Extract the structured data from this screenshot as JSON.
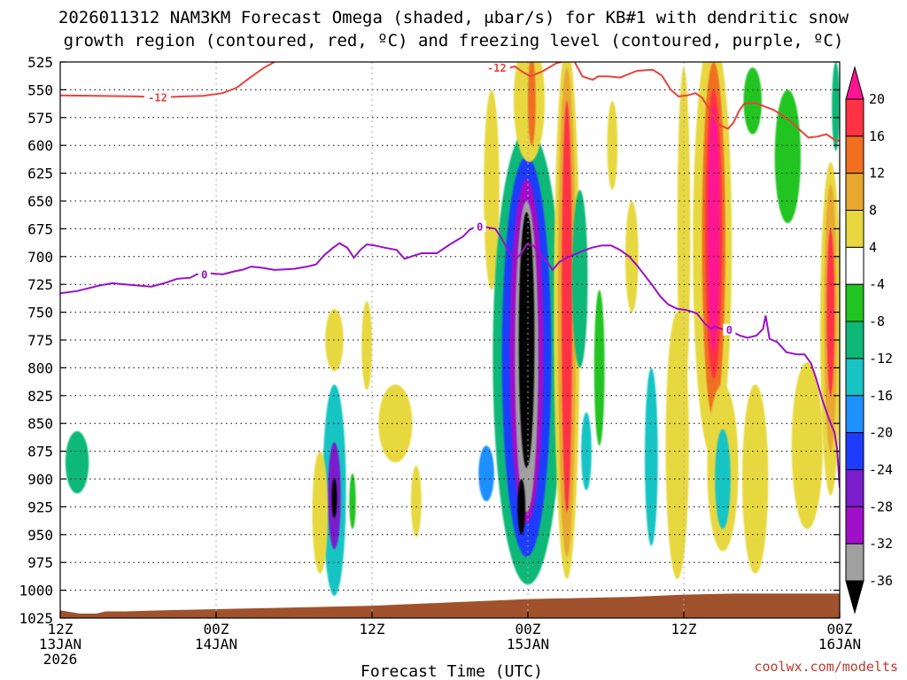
{
  "chart_data": {
    "type": "heatmap",
    "title_line1": "2026011312 NAM3KM Forecast Omega (shaded, μbar/s) for KB#1 with dendritic snow",
    "title_line2": "growth region (contoured, red, ºC) and freezing level (contoured, purple, ºC)",
    "xlabel": "Forecast Time (UTC)",
    "credit": "coolwx.com/modelts",
    "x_unit": "forecast hour",
    "x_range": [
      0,
      60
    ],
    "y_unit": "hPa",
    "y_range": [
      525,
      1025
    ],
    "y_ticks": [
      525,
      550,
      575,
      600,
      625,
      650,
      675,
      700,
      725,
      750,
      775,
      800,
      825,
      850,
      875,
      900,
      925,
      950,
      975,
      1000,
      1025
    ],
    "x_ticks": [
      {
        "hour": 0,
        "line1": "12Z",
        "line2": "13JAN",
        "line3": "2026"
      },
      {
        "hour": 12,
        "line1": "00Z",
        "line2": "14JAN",
        "line3": ""
      },
      {
        "hour": 24,
        "line1": "12Z",
        "line2": "",
        "line3": ""
      },
      {
        "hour": 36,
        "line1": "00Z",
        "line2": "15JAN",
        "line3": ""
      },
      {
        "hour": 48,
        "line1": "12Z",
        "line2": "",
        "line3": ""
      },
      {
        "hour": 60,
        "line1": "00Z",
        "line2": "16JAN",
        "line3": ""
      }
    ],
    "colorbar": {
      "levels": [
        "20",
        "16",
        "12",
        "8",
        "4",
        "-4",
        "-8",
        "-12",
        "-16",
        "-20",
        "-24",
        "-28",
        "-32",
        "-36"
      ],
      "colors": [
        "#ff1493",
        "#ff3344",
        "#f07020",
        "#e8a830",
        "#e8d840",
        "#ffffff",
        "#22c422",
        "#10b878",
        "#18c4c4",
        "#1e90ff",
        "#1e3cff",
        "#7a1ecc",
        "#a010c8",
        "#a0a0a0",
        "#000000"
      ]
    },
    "omega_color_scale": {
      "-36": "#000000",
      "-32": "#a0a0a0",
      "-30": "#a010c8",
      "-26": "#7a1ecc",
      "-22": "#1e3cff",
      "-18": "#1e90ff",
      "-14": "#18c4c4",
      "-10": "#10b878",
      "-6": "#22c422",
      "6": "#e8d840",
      "10": "#e8a830",
      "14": "#f07020",
      "18": "#ff3344",
      "22": "#ff1493"
    },
    "omega_features": [
      {
        "t": 1.3,
        "p": 885,
        "dt": 0.9,
        "dp": 28,
        "v": -8
      },
      {
        "t": 21.1,
        "p": 775,
        "dt": 0.7,
        "dp": 28,
        "v": 5
      },
      {
        "t": 21.1,
        "p": 910,
        "dt": 0.9,
        "dp": 95,
        "v": -12
      },
      {
        "t": 21.1,
        "p": 915,
        "dt": 0.5,
        "dp": 48,
        "v": -24
      },
      {
        "t": 21.1,
        "p": 917,
        "dt": 0.2,
        "dp": 18,
        "v": -34
      },
      {
        "t": 20.0,
        "p": 930,
        "dt": 0.6,
        "dp": 55,
        "v": 5
      },
      {
        "t": 22.5,
        "p": 920,
        "dt": 0.25,
        "dp": 25,
        "v": -6
      },
      {
        "t": 23.6,
        "p": 780,
        "dt": 0.4,
        "dp": 40,
        "v": 5
      },
      {
        "t": 25.8,
        "p": 850,
        "dt": 1.3,
        "dp": 35,
        "v": 5
      },
      {
        "t": 27.4,
        "p": 920,
        "dt": 0.4,
        "dp": 32,
        "v": 5
      },
      {
        "t": 33.2,
        "p": 640,
        "dt": 0.6,
        "dp": 90,
        "v": 5
      },
      {
        "t": 32.8,
        "p": 895,
        "dt": 0.6,
        "dp": 25,
        "v": -16
      },
      {
        "t": 36.0,
        "p": 790,
        "dt": 2.7,
        "dp": 205,
        "v": -10
      },
      {
        "t": 35.9,
        "p": 790,
        "dt": 1.9,
        "dp": 180,
        "v": -20
      },
      {
        "t": 35.9,
        "p": 785,
        "dt": 1.3,
        "dp": 155,
        "v": -29
      },
      {
        "t": 35.9,
        "p": 790,
        "dt": 0.9,
        "dp": 140,
        "v": -33
      },
      {
        "t": 35.9,
        "p": 775,
        "dt": 0.6,
        "dp": 115,
        "v": -38
      },
      {
        "t": 35.5,
        "p": 925,
        "dt": 0.3,
        "dp": 25,
        "v": -38
      },
      {
        "t": 36.1,
        "p": 560,
        "dt": 1.2,
        "dp": 55,
        "v": 5
      },
      {
        "t": 36.3,
        "p": 560,
        "dt": 0.3,
        "dp": 40,
        "v": 14
      },
      {
        "t": 39.0,
        "p": 750,
        "dt": 1.0,
        "dp": 240,
        "v": 5
      },
      {
        "t": 39.0,
        "p": 750,
        "dt": 0.7,
        "dp": 220,
        "v": 12
      },
      {
        "t": 39.0,
        "p": 745,
        "dt": 0.4,
        "dp": 185,
        "v": 18
      },
      {
        "t": 40.0,
        "p": 720,
        "dt": 0.6,
        "dp": 80,
        "v": -10
      },
      {
        "t": 40.5,
        "p": 875,
        "dt": 0.4,
        "dp": 35,
        "v": -14
      },
      {
        "t": 41.5,
        "p": 800,
        "dt": 0.4,
        "dp": 70,
        "v": -6
      },
      {
        "t": 42.5,
        "p": 600,
        "dt": 0.4,
        "dp": 40,
        "v": 5
      },
      {
        "t": 44.0,
        "p": 700,
        "dt": 0.5,
        "dp": 50,
        "v": 5
      },
      {
        "t": 45.5,
        "p": 880,
        "dt": 0.5,
        "dp": 80,
        "v": -12
      },
      {
        "t": 47.5,
        "p": 870,
        "dt": 0.9,
        "dp": 120,
        "v": 5
      },
      {
        "t": 48.0,
        "p": 680,
        "dt": 0.5,
        "dp": 150,
        "v": 8
      },
      {
        "t": 50.2,
        "p": 690,
        "dt": 1.5,
        "dp": 190,
        "v": 8
      },
      {
        "t": 50.3,
        "p": 685,
        "dt": 0.9,
        "dp": 160,
        "v": 14
      },
      {
        "t": 50.3,
        "p": 680,
        "dt": 0.65,
        "dp": 130,
        "v": 18
      },
      {
        "t": 50.3,
        "p": 675,
        "dt": 0.45,
        "dp": 110,
        "v": 22
      },
      {
        "t": 51.0,
        "p": 890,
        "dt": 1.2,
        "dp": 75,
        "v": 5
      },
      {
        "t": 51.0,
        "p": 900,
        "dt": 0.6,
        "dp": 45,
        "v": -12
      },
      {
        "t": 53.5,
        "p": 900,
        "dt": 1.0,
        "dp": 85,
        "v": 5
      },
      {
        "t": 53.3,
        "p": 560,
        "dt": 0.7,
        "dp": 30,
        "v": -7
      },
      {
        "t": 56.0,
        "p": 610,
        "dt": 1.0,
        "dp": 60,
        "v": -7
      },
      {
        "t": 57.5,
        "p": 870,
        "dt": 1.2,
        "dp": 75,
        "v": 5
      },
      {
        "t": 59.3,
        "p": 765,
        "dt": 0.8,
        "dp": 150,
        "v": 5
      },
      {
        "t": 59.3,
        "p": 755,
        "dt": 0.5,
        "dp": 120,
        "v": 12
      },
      {
        "t": 59.3,
        "p": 750,
        "dt": 0.3,
        "dp": 75,
        "v": 18
      },
      {
        "t": 59.7,
        "p": 565,
        "dt": 0.3,
        "dp": 40,
        "v": -10
      }
    ],
    "dgz_label": "-12",
    "dgz_contours": [
      [
        [
          0,
          555
        ],
        [
          3,
          555.5
        ],
        [
          6,
          556
        ],
        [
          7.5,
          557
        ],
        [
          8.3,
          556.5
        ],
        [
          9.5,
          556
        ],
        [
          11,
          555.5
        ],
        [
          12.5,
          553
        ],
        [
          13.6,
          548
        ],
        [
          14.5,
          540
        ],
        [
          15.7,
          530
        ],
        [
          16.5,
          525
        ]
      ],
      [
        [
          33,
          525
        ],
        [
          33.4,
          527
        ],
        [
          34.3,
          531
        ],
        [
          35.0,
          529
        ],
        [
          35.6,
          534
        ],
        [
          36.2,
          538
        ],
        [
          37.2,
          533
        ],
        [
          38.2,
          526
        ],
        [
          38.6,
          525
        ]
      ],
      [
        [
          39.6,
          525
        ],
        [
          40.2,
          538
        ],
        [
          41.0,
          541
        ],
        [
          41.4,
          538
        ],
        [
          42.2,
          538
        ],
        [
          43.1,
          539
        ],
        [
          44.4,
          533
        ],
        [
          45.6,
          532
        ],
        [
          46.3,
          537
        ],
        [
          47.0,
          550
        ],
        [
          47.6,
          556
        ],
        [
          48.3,
          555
        ],
        [
          48.9,
          553
        ],
        [
          49.4,
          557
        ],
        [
          50.0,
          568
        ],
        [
          50.5,
          578
        ],
        [
          50.8,
          582
        ],
        [
          51.4,
          585
        ],
        [
          51.8,
          580
        ],
        [
          52.3,
          568
        ],
        [
          52.7,
          562
        ],
        [
          53.6,
          562
        ],
        [
          54.2,
          565
        ],
        [
          54.9,
          568
        ],
        [
          55.6,
          573
        ],
        [
          56.2,
          578
        ],
        [
          57.1,
          588
        ],
        [
          57.6,
          593
        ],
        [
          58.3,
          592
        ],
        [
          59.0,
          590
        ],
        [
          59.6,
          595
        ],
        [
          60,
          596
        ]
      ]
    ],
    "freezing_label": "0",
    "freezing_level": [
      [
        0,
        733
      ],
      [
        1.3,
        731
      ],
      [
        3.0,
        726
      ],
      [
        4.0,
        724
      ],
      [
        5.0,
        725
      ],
      [
        6.0,
        726
      ],
      [
        7.0,
        727
      ],
      [
        8.0,
        724
      ],
      [
        9.0,
        720
      ],
      [
        10.0,
        719
      ],
      [
        10.5,
        716
      ],
      [
        11.5,
        715
      ],
      [
        12.5,
        716
      ],
      [
        13.5,
        713
      ],
      [
        14.0,
        712
      ],
      [
        14.7,
        709
      ],
      [
        15.5,
        710
      ],
      [
        16.5,
        712
      ],
      [
        18.0,
        711
      ],
      [
        19.0,
        709
      ],
      [
        19.7,
        707
      ],
      [
        20.3,
        699
      ],
      [
        21.0,
        692
      ],
      [
        21.5,
        688
      ],
      [
        22.1,
        692
      ],
      [
        22.6,
        701
      ],
      [
        23.1,
        694
      ],
      [
        23.6,
        689
      ],
      [
        24.2,
        690
      ],
      [
        25.0,
        692
      ],
      [
        25.9,
        694
      ],
      [
        26.5,
        702
      ],
      [
        27.0,
        700
      ],
      [
        27.8,
        697
      ],
      [
        29.0,
        697
      ],
      [
        30.0,
        689
      ],
      [
        31.0,
        682
      ],
      [
        31.5,
        676
      ],
      [
        32.0,
        673
      ],
      [
        32.5,
        673
      ],
      [
        33.5,
        675
      ],
      [
        34.0,
        684
      ],
      [
        34.5,
        695
      ],
      [
        35.0,
        703
      ],
      [
        35.5,
        697
      ],
      [
        35.9,
        689
      ],
      [
        36.4,
        690
      ],
      [
        37.0,
        698
      ],
      [
        37.5,
        705
      ],
      [
        37.9,
        712
      ],
      [
        38.4,
        705
      ],
      [
        39.0,
        701
      ],
      [
        39.6,
        698
      ],
      [
        40.2,
        695
      ],
      [
        40.9,
        692
      ],
      [
        41.7,
        690
      ],
      [
        42.4,
        690
      ],
      [
        43.1,
        694
      ],
      [
        43.8,
        700
      ],
      [
        44.4,
        708
      ],
      [
        45.0,
        717
      ],
      [
        45.6,
        726
      ],
      [
        46.2,
        736
      ],
      [
        46.8,
        743
      ],
      [
        47.5,
        747
      ],
      [
        48.2,
        748
      ],
      [
        49.0,
        751
      ],
      [
        49.6,
        760
      ],
      [
        50.1,
        765
      ],
      [
        50.4,
        763
      ],
      [
        50.9,
        765
      ],
      [
        51.5,
        766
      ],
      [
        52.3,
        771
      ],
      [
        52.9,
        773
      ],
      [
        53.6,
        771
      ],
      [
        54.1,
        765
      ],
      [
        54.3,
        753
      ],
      [
        54.6,
        774
      ],
      [
        55.2,
        777
      ],
      [
        55.9,
        786
      ],
      [
        56.7,
        788
      ],
      [
        57.3,
        788
      ],
      [
        57.8,
        796
      ],
      [
        58.2,
        810
      ],
      [
        58.7,
        830
      ],
      [
        59.2,
        847
      ],
      [
        59.6,
        858
      ],
      [
        59.8,
        873
      ],
      [
        60,
        908
      ]
    ],
    "terrain_surface": [
      [
        0,
        1018
      ],
      [
        0.5,
        1019
      ],
      [
        1.5,
        1021
      ],
      [
        2.8,
        1021
      ],
      [
        3.5,
        1019
      ],
      [
        5,
        1019
      ],
      [
        8,
        1018
      ],
      [
        12,
        1017
      ],
      [
        16,
        1016
      ],
      [
        20,
        1015
      ],
      [
        24,
        1014
      ],
      [
        28,
        1012
      ],
      [
        32,
        1010
      ],
      [
        34,
        1009
      ],
      [
        36,
        1008
      ],
      [
        40,
        1007
      ],
      [
        44,
        1006
      ],
      [
        48,
        1004
      ],
      [
        52,
        1003
      ],
      [
        56,
        1003
      ],
      [
        60,
        1003
      ]
    ]
  },
  "colors": {
    "dgz_line": "#e8433c",
    "freezing_line": "#9a10c8",
    "terrain": "#a0522d",
    "credit": "#c0392b"
  }
}
